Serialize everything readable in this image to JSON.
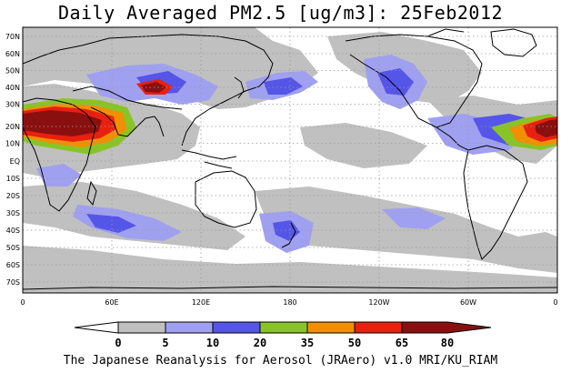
{
  "title": "Daily Averaged PM2.5 [ug/m3]: 25Feb2012",
  "credit": "The Japanese Reanalysis for Aerosol (JRAero) v1.0 MRI/KU_RIAM",
  "lat_ticks": [
    "70N",
    "60N",
    "50N",
    "40N",
    "30N",
    "20N",
    "10N",
    "EQ",
    "10S",
    "20S",
    "30S",
    "40S",
    "50S",
    "60S",
    "70S"
  ],
  "lon_ticks": [
    "0",
    "60E",
    "120E",
    "180",
    "120W",
    "60W",
    "0"
  ],
  "colorbar": {
    "levels": [
      "0",
      "5",
      "10",
      "20",
      "35",
      "50",
      "65",
      "80"
    ],
    "colors": [
      "#ffffff",
      "#c0c0c0",
      "#a0a0f0",
      "#5555e8",
      "#88c428",
      "#f09000",
      "#e82010",
      "#8a1010"
    ]
  }
}
